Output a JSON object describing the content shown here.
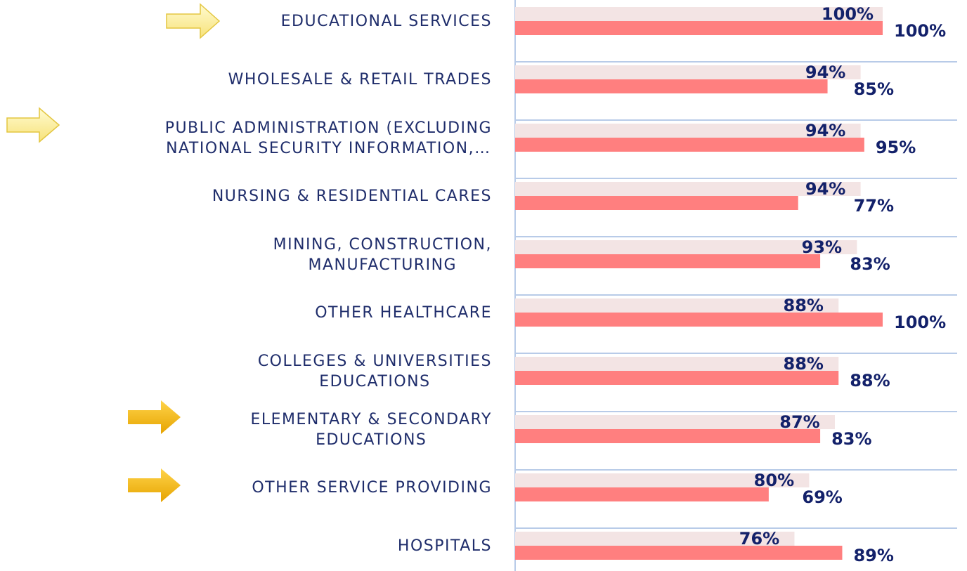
{
  "chart_data": {
    "type": "bar",
    "orientation": "horizontal",
    "categories": [
      "EDUCATIONAL SERVICES",
      "WHOLESALE & RETAIL TRADES",
      "PUBLIC ADMINISTRATION (EXCLUDING\nNATIONAL SECURITY INFORMATION,…",
      "NURSING & RESIDENTIAL CARES",
      "MINING, CONSTRUCTION,\nMANUFACTURING",
      "OTHER HEALTHCARE",
      "COLLEGES & UNIVERSITIES\nEDUCATIONS",
      "ELEMENTARY & SECONDARY\nEDUCATIONS",
      "OTHER SERVICE PROVIDING",
      "HOSPITALS"
    ],
    "series": [
      {
        "color": "#f3e4e4",
        "values": [
          100,
          94,
          94,
          94,
          93,
          88,
          88,
          87,
          80,
          76
        ],
        "value_labels": [
          "100%",
          "94%",
          "94%",
          "94%",
          "93%",
          "88%",
          "88%",
          "87%",
          "80%",
          "76%"
        ]
      },
      {
        "color": "#ff7f7f",
        "values": [
          100,
          85,
          95,
          77,
          83,
          100,
          88,
          83,
          69,
          89
        ],
        "value_labels": [
          "100%",
          "85%",
          "95%",
          "77%",
          "83%",
          "100%",
          "88%",
          "83%",
          "69%",
          "89%"
        ]
      }
    ],
    "xlim": [
      0,
      100
    ]
  }
}
